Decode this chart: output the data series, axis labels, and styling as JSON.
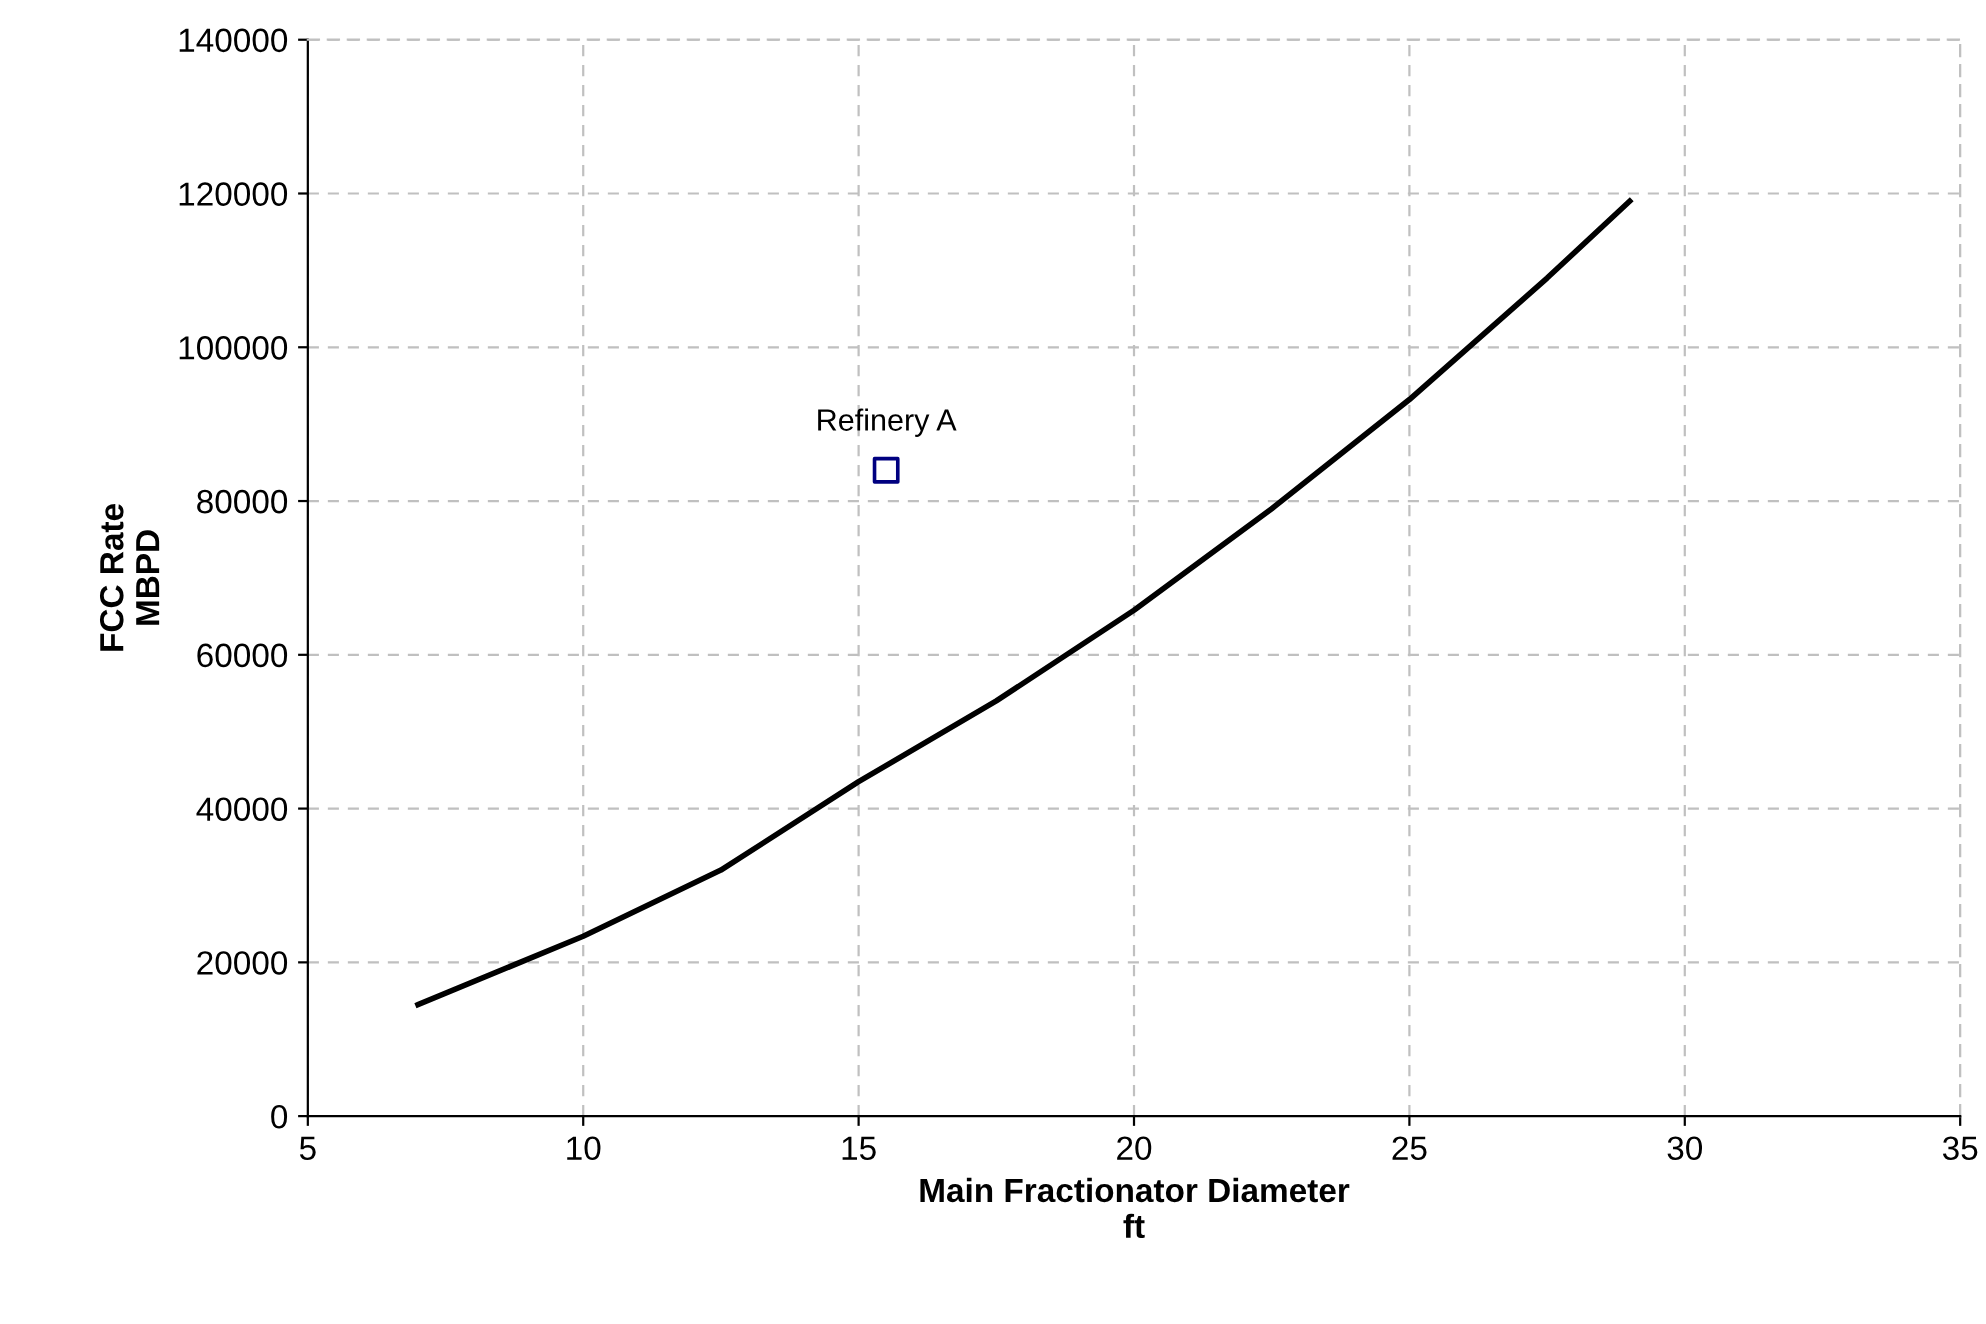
{
  "chart_data": {
    "type": "line",
    "xlabel": "Main Fractionator Diameter\nft",
    "ylabel": "FCC Rate\nMBPD",
    "series": [
      {
        "color": "#000000",
        "x": [
          7,
          10,
          12.5,
          15,
          17.5,
          20,
          22.5,
          25,
          27.5,
          29
        ],
        "values": [
          14500,
          23400,
          32000,
          43500,
          54000,
          65800,
          79000,
          93200,
          109000,
          119000
        ],
        "marker": "none",
        "line_style": "solid"
      },
      {
        "type": "scatter",
        "color": "#000080",
        "x": [
          15.5
        ],
        "values": [
          84000
        ],
        "marker": "square"
      }
    ],
    "annotations": [
      {
        "text": "Refinery A",
        "x": 15.5,
        "y": 84000
      }
    ],
    "xlim": [
      5,
      35
    ],
    "xticks": [
      5,
      10,
      15,
      20,
      25,
      30,
      35
    ],
    "ylim": [
      0,
      140000
    ],
    "yticks": [
      0,
      20000,
      40000,
      60000,
      80000,
      100000,
      120000,
      140000
    ],
    "grid": true,
    "legend": false
  }
}
